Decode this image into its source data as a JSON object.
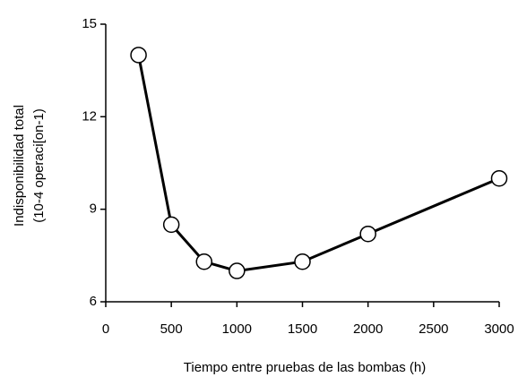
{
  "chart_data": {
    "type": "line",
    "x_label": "Tiempo entre pruebas de las bombas (h)",
    "y_label": [
      "Indisponibilidad total",
      "(10-4 operaci[on-1)"
    ],
    "x": [
      250,
      500,
      750,
      1000,
      1500,
      2000,
      3000
    ],
    "values": [
      14,
      8.5,
      7.3,
      7.0,
      7.3,
      8.2,
      10.0
    ],
    "color": "#000000",
    "xlim": [
      0,
      3000
    ],
    "xticks": [
      0,
      500,
      1000,
      1500,
      2000,
      2500,
      3000
    ],
    "ylim": [
      6,
      15
    ],
    "yticks": [
      6,
      9,
      12,
      15
    ],
    "grid": false
  }
}
